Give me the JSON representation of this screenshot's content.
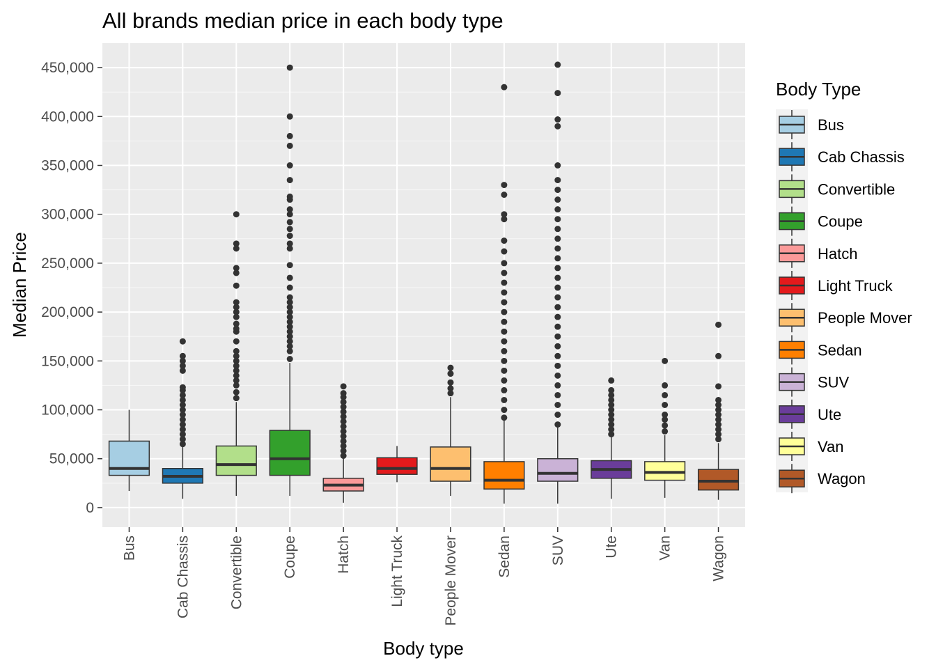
{
  "chart_data": {
    "type": "box",
    "title": "All brands median price in each body type",
    "xlabel": "Body type",
    "ylabel": "Median Price",
    "ylim": [
      -20000,
      475000
    ],
    "y_ticks": [
      0,
      50000,
      100000,
      150000,
      200000,
      250000,
      300000,
      350000,
      400000,
      450000
    ],
    "y_tick_labels": [
      "0",
      "50,000",
      "100,000",
      "150,000",
      "200,000",
      "250,000",
      "300,000",
      "350,000",
      "400,000",
      "450,000"
    ],
    "grid": true,
    "legend": {
      "title": "Body Type",
      "placement": "right"
    },
    "categories": [
      "Bus",
      "Cab Chassis",
      "Convertible",
      "Coupe",
      "Hatch",
      "Light Truck",
      "People Mover",
      "Sedan",
      "SUV",
      "Ute",
      "Van",
      "Wagon"
    ],
    "series": [
      {
        "name": "Bus",
        "color": "#a6cee3",
        "whisker_low": 17000,
        "q1": 33000,
        "median": 40000,
        "q3": 68000,
        "whisker_high": 100000,
        "outliers": []
      },
      {
        "name": "Cab Chassis",
        "color": "#1f78b4",
        "whisker_low": 9000,
        "q1": 25000,
        "median": 32000,
        "q3": 40000,
        "whisker_high": 62000,
        "outliers": [
          65000,
          70000,
          75000,
          80000,
          85000,
          90000,
          95000,
          100000,
          105000,
          110000,
          115000,
          120000,
          123000,
          140000,
          145000,
          150000,
          155000,
          170000
        ]
      },
      {
        "name": "Convertible",
        "color": "#b2df8a",
        "whisker_low": 12000,
        "q1": 33000,
        "median": 44000,
        "q3": 63000,
        "whisker_high": 108000,
        "outliers": [
          112000,
          118000,
          125000,
          130000,
          135000,
          140000,
          145000,
          150000,
          155000,
          160000,
          170000,
          180000,
          183000,
          188000,
          195000,
          200000,
          205000,
          210000,
          227000,
          240000,
          245000,
          265000,
          270000,
          300000
        ]
      },
      {
        "name": "Coupe",
        "color": "#33a02c",
        "whisker_low": 12000,
        "q1": 33000,
        "median": 50000,
        "q3": 79000,
        "whisker_high": 148000,
        "outliers": [
          152000,
          160000,
          165000,
          170000,
          175000,
          180000,
          185000,
          190000,
          195000,
          200000,
          205000,
          210000,
          215000,
          225000,
          235000,
          248000,
          265000,
          270000,
          278000,
          285000,
          292000,
          300000,
          305000,
          315000,
          318000,
          335000,
          350000,
          370000,
          380000,
          400000,
          450000
        ]
      },
      {
        "name": "Hatch",
        "color": "#fb9a99",
        "whisker_low": 5000,
        "q1": 17000,
        "median": 23000,
        "q3": 30000,
        "whisker_high": 50000,
        "outliers": [
          53000,
          58000,
          63000,
          68000,
          73000,
          78000,
          83000,
          88000,
          93000,
          98000,
          103000,
          108000,
          113000,
          117000,
          124000
        ]
      },
      {
        "name": "Light Truck",
        "color": "#e31a1c",
        "whisker_low": 26000,
        "q1": 34000,
        "median": 40000,
        "q3": 51000,
        "whisker_high": 63000,
        "outliers": []
      },
      {
        "name": "People Mover",
        "color": "#fdbf6f",
        "whisker_low": 12000,
        "q1": 27000,
        "median": 40000,
        "q3": 62000,
        "whisker_high": 113000,
        "outliers": [
          117000,
          122000,
          128000,
          137000,
          143000
        ]
      },
      {
        "name": "Sedan",
        "color": "#ff7f00",
        "whisker_low": 4000,
        "q1": 19000,
        "median": 28000,
        "q3": 47000,
        "whisker_high": 89000,
        "outliers": [
          92000,
          100000,
          110000,
          120000,
          130000,
          140000,
          150000,
          160000,
          170000,
          180000,
          190000,
          200000,
          210000,
          220000,
          230000,
          240000,
          250000,
          262000,
          273000,
          295000,
          300000,
          320000,
          330000,
          430000
        ]
      },
      {
        "name": "SUV",
        "color": "#cab2d6",
        "whisker_low": 4000,
        "q1": 27000,
        "median": 35000,
        "q3": 50000,
        "whisker_high": 82000,
        "outliers": [
          85000,
          95000,
          105000,
          115000,
          125000,
          135000,
          145000,
          155000,
          165000,
          175000,
          185000,
          195000,
          205000,
          215000,
          225000,
          235000,
          245000,
          255000,
          265000,
          275000,
          285000,
          295000,
          305000,
          315000,
          325000,
          335000,
          350000,
          390000,
          397000,
          424000,
          453000
        ]
      },
      {
        "name": "Ute",
        "color": "#6a3d9a",
        "whisker_low": 9000,
        "q1": 30000,
        "median": 39000,
        "q3": 48000,
        "whisker_high": 72000,
        "outliers": [
          75000,
          80000,
          85000,
          90000,
          95000,
          100000,
          105000,
          110000,
          115000,
          120000,
          130000
        ]
      },
      {
        "name": "Van",
        "color": "#ffff99",
        "whisker_low": 10000,
        "q1": 28000,
        "median": 36000,
        "q3": 47000,
        "whisker_high": 74000,
        "outliers": [
          78000,
          84000,
          90000,
          95000,
          105000,
          115000,
          125000,
          150000
        ]
      },
      {
        "name": "Wagon",
        "color": "#b15928",
        "whisker_low": 8000,
        "q1": 18000,
        "median": 27000,
        "q3": 39000,
        "whisker_high": 66000,
        "outliers": [
          70000,
          75000,
          80000,
          85000,
          90000,
          95000,
          100000,
          105000,
          110000,
          124000,
          155000,
          187000
        ]
      }
    ]
  }
}
